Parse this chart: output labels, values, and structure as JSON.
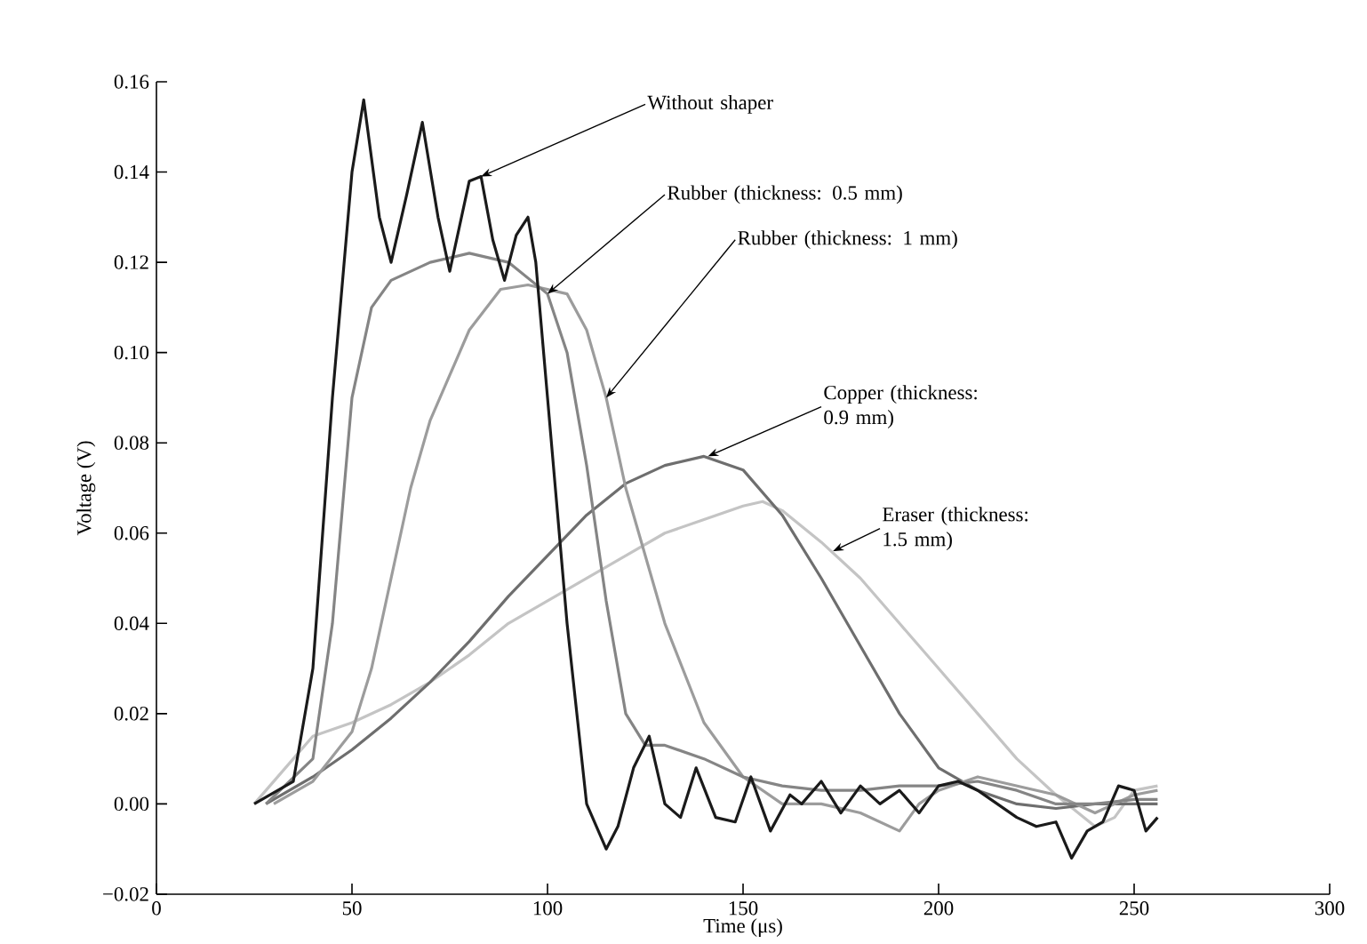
{
  "chart_data": {
    "type": "line",
    "xlabel": "Time (μs)",
    "ylabel": "Voltage (V)",
    "xlim": [
      0,
      300
    ],
    "ylim": [
      -0.02,
      0.16
    ],
    "xticks": [
      0,
      50,
      100,
      150,
      200,
      250,
      300
    ],
    "yticks": [
      {
        "value": -0.02,
        "label": "−0.02"
      },
      {
        "value": 0,
        "label": "0.00"
      },
      {
        "value": 0.02,
        "label": "0.02"
      },
      {
        "value": 0.04,
        "label": "0.04"
      },
      {
        "value": 0.06,
        "label": "0.06"
      },
      {
        "value": 0.08,
        "label": "0.08"
      },
      {
        "value": 0.1,
        "label": "0.10"
      },
      {
        "value": 0.12,
        "label": "0.12"
      },
      {
        "value": 0.14,
        "label": "0.14"
      },
      {
        "value": 0.16,
        "label": "0.16"
      }
    ],
    "grid": false,
    "marker": "none",
    "line_style": "solid",
    "series": [
      {
        "color": "#c4c4c4",
        "x": [
          25,
          35,
          40,
          50,
          60,
          70,
          80,
          90,
          100,
          110,
          120,
          130,
          140,
          150,
          155,
          160,
          170,
          180,
          190,
          200,
          210,
          220,
          230,
          240,
          245,
          250,
          256
        ],
        "values": [
          0,
          0.01,
          0.015,
          0.018,
          0.022,
          0.027,
          0.033,
          0.04,
          0.045,
          0.05,
          0.055,
          0.06,
          0.063,
          0.066,
          0.067,
          0.065,
          0.058,
          0.05,
          0.04,
          0.03,
          0.02,
          0.01,
          0.002,
          -0.005,
          -0.003,
          0.003,
          0.004
        ]
      },
      {
        "color": "#6e6e6e",
        "x": [
          28,
          40,
          50,
          60,
          70,
          80,
          90,
          100,
          110,
          120,
          130,
          140,
          150,
          160,
          170,
          180,
          190,
          200,
          210,
          220,
          230,
          240,
          250,
          256
        ],
        "values": [
          0,
          0.006,
          0.012,
          0.019,
          0.027,
          0.036,
          0.046,
          0.055,
          0.064,
          0.071,
          0.075,
          0.077,
          0.074,
          0.064,
          0.05,
          0.035,
          0.02,
          0.008,
          0.003,
          0,
          -0.001,
          0,
          0,
          0
        ]
      },
      {
        "color": "#9c9c9c",
        "x": [
          30,
          40,
          50,
          55,
          60,
          65,
          70,
          80,
          88,
          95,
          105,
          110,
          115,
          120,
          130,
          140,
          150,
          160,
          170,
          180,
          190,
          195,
          200,
          210,
          220,
          230,
          240,
          250,
          256
        ],
        "values": [
          0,
          0.005,
          0.016,
          0.03,
          0.05,
          0.07,
          0.085,
          0.105,
          0.114,
          0.115,
          0.113,
          0.105,
          0.09,
          0.07,
          0.04,
          0.018,
          0.006,
          0,
          0,
          -0.002,
          -0.006,
          0,
          0.003,
          0.006,
          0.004,
          0.002,
          -0.002,
          0.002,
          0.003
        ]
      },
      {
        "color": "#858585",
        "x": [
          28,
          40,
          45,
          50,
          55,
          60,
          70,
          80,
          90,
          100,
          105,
          110,
          115,
          120,
          125,
          130,
          140,
          150,
          160,
          170,
          180,
          190,
          200,
          210,
          220,
          230,
          240,
          250,
          256
        ],
        "values": [
          0,
          0.01,
          0.04,
          0.09,
          0.11,
          0.116,
          0.12,
          0.122,
          0.12,
          0.113,
          0.1,
          0.075,
          0.045,
          0.02,
          0.013,
          0.013,
          0.01,
          0.006,
          0.004,
          0.003,
          0.003,
          0.004,
          0.004,
          0.005,
          0.003,
          0,
          0,
          0.001,
          0.001
        ]
      },
      {
        "color": "#1a1a1a",
        "x": [
          25,
          35,
          40,
          45,
          50,
          53,
          57,
          60,
          64,
          68,
          72,
          75,
          80,
          83,
          86,
          89,
          92,
          95,
          97,
          100,
          105,
          110,
          115,
          118,
          122,
          126,
          130,
          134,
          138,
          143,
          148,
          152,
          157,
          162,
          165,
          170,
          175,
          180,
          185,
          190,
          195,
          200,
          205,
          210,
          215,
          220,
          225,
          230,
          234,
          238,
          242,
          246,
          250,
          253,
          256
        ],
        "values": [
          0,
          0.005,
          0.03,
          0.09,
          0.14,
          0.156,
          0.13,
          0.12,
          0.135,
          0.151,
          0.13,
          0.118,
          0.138,
          0.139,
          0.125,
          0.116,
          0.126,
          0.13,
          0.12,
          0.09,
          0.04,
          0,
          -0.01,
          -0.005,
          0.008,
          0.015,
          0,
          -0.003,
          0.008,
          -0.003,
          -0.004,
          0.006,
          -0.006,
          0.002,
          0,
          0.005,
          -0.002,
          0.004,
          0,
          0.003,
          -0.002,
          0.004,
          0.005,
          0.003,
          0,
          -0.003,
          -0.005,
          -0.004,
          -0.012,
          -0.006,
          -0.004,
          0.004,
          0.003,
          -0.006,
          -0.003
        ]
      }
    ],
    "annotations": [
      {
        "text": "Without shaper",
        "x": 83,
        "y": 0.139
      },
      {
        "text": "Rubber (thickness: 0.5 mm)",
        "x": 100,
        "y": 0.113
      },
      {
        "text": "Rubber (thickness: 1 mm)",
        "x": 115,
        "y": 0.09
      },
      {
        "text": "Copper (thickness: 0.9 mm)",
        "x": 141,
        "y": 0.077
      },
      {
        "text": "Eraser (thickness: 1.5 mm)",
        "x": 173,
        "y": 0.056
      }
    ]
  }
}
